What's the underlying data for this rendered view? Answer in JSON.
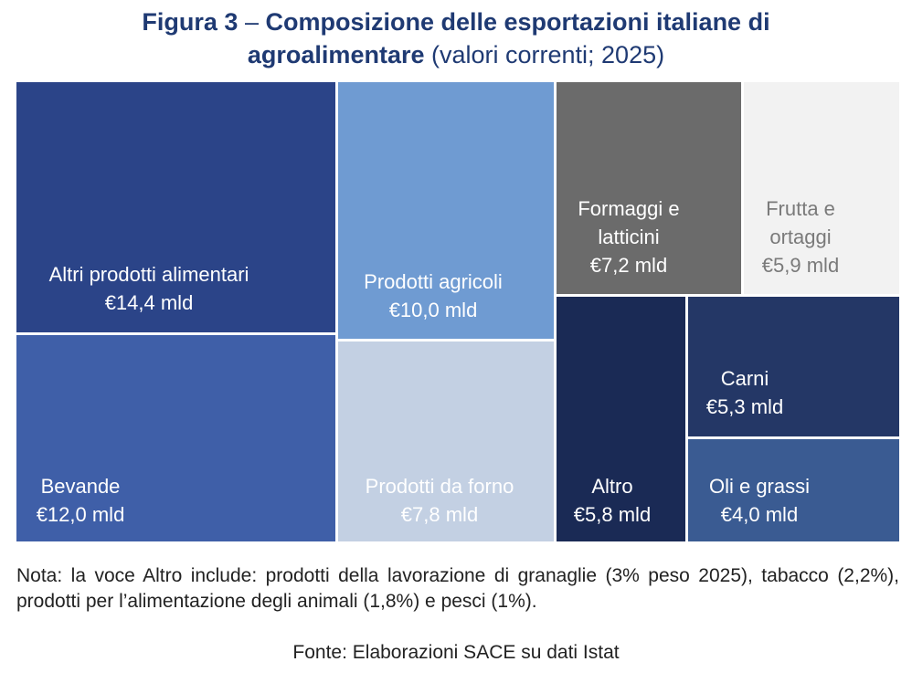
{
  "header": {
    "title_prefix": "Figura 3",
    "title_dash": " – ",
    "title_bold_1": "Composizione delle esportazioni italiane di",
    "title_bold_2": "agroalimentare",
    "title_normal": " (valori correnti; 2025)"
  },
  "chart_data": {
    "type": "treemap",
    "unit": "mld €",
    "items": [
      {
        "name": "Altri prodotti alimentari",
        "label": "Altri prodotti alimentari",
        "value_label": "€14,4 mld",
        "value": 14.4,
        "color": "#2b4488",
        "text_color": "#ffffff"
      },
      {
        "name": "Bevande",
        "label": "Bevande",
        "value_label": "€12,0 mld",
        "value": 12.0,
        "color": "#3f5fa8",
        "text_color": "#ffffff"
      },
      {
        "name": "Prodotti agricoli",
        "label": "Prodotti agricoli",
        "value_label": "€10,0 mld",
        "value": 10.0,
        "color": "#6f9bd2",
        "text_color": "#ffffff"
      },
      {
        "name": "Prodotti da forno",
        "label": "Prodotti da forno",
        "value_label": "€7,8 mld",
        "value": 7.8,
        "color": "#c3d0e3",
        "text_color": "#ffffff"
      },
      {
        "name": "Formaggi e latticini",
        "label": [
          "Formaggi e",
          "latticini"
        ],
        "value_label": "€7,2 mld",
        "value": 7.2,
        "color": "#6b6b6b",
        "text_color": "#ffffff"
      },
      {
        "name": "Frutta e ortaggi",
        "label": [
          "Frutta e",
          "ortaggi"
        ],
        "value_label": "€5,9 mld",
        "value": 5.9,
        "color": "#f2f2f2",
        "text_color": "#7a7a7a"
      },
      {
        "name": "Altro",
        "label": "Altro",
        "value_label": "€5,8 mld",
        "value": 5.8,
        "color": "#1a2a55",
        "text_color": "#ffffff"
      },
      {
        "name": "Carni",
        "label": "Carni",
        "value_label": "€5,3 mld",
        "value": 5.3,
        "color": "#243766",
        "text_color": "#ffffff"
      },
      {
        "name": "Oli e grassi",
        "label": "Oli e grassi",
        "value_label": "€4,0 mld",
        "value": 4.0,
        "color": "#3a5b92",
        "text_color": "#ffffff"
      }
    ]
  },
  "note": "Nota: la voce Altro include: prodotti della lavorazione di granaglie (3% peso 2025), tabacco (2,2%), prodotti per l’alimentazione degli animali (1,8%) e pesci (1%).",
  "source": "Fonte: Elaborazioni SACE su dati Istat"
}
